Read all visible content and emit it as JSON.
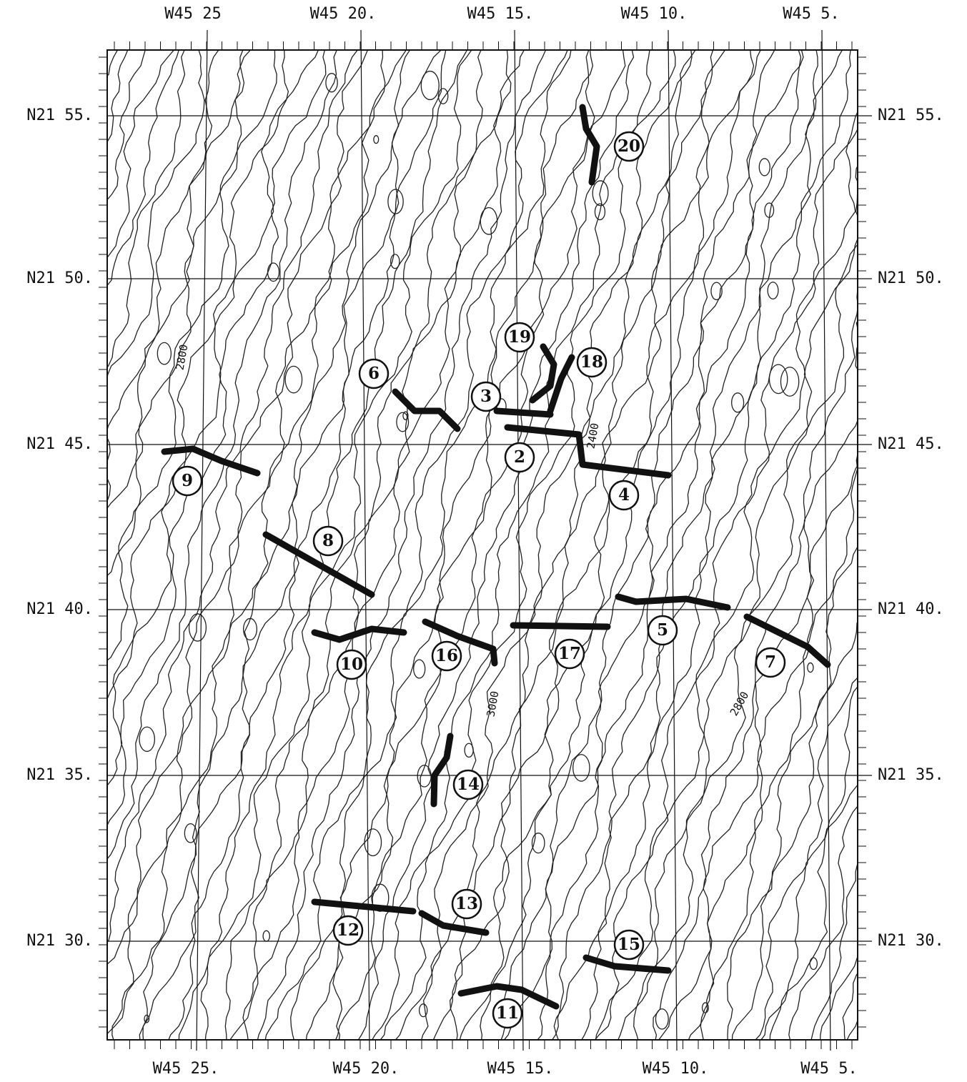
{
  "top_labels": [
    "W45 25",
    "W45 20.",
    "W45 15.",
    "W45 10.",
    "W45 5."
  ],
  "bottom_labels": [
    "W45 25.",
    "W45 20.",
    "W45 15.",
    "W45 10.",
    "W45 5."
  ],
  "left_labels": [
    "N21 55.",
    "N21 50.",
    "N21 45.",
    "N21 40.",
    "N21 35.",
    "N21 30."
  ],
  "right_labels": [
    "N21 55.",
    "N21 50.",
    "N21 45.",
    "N21 40.",
    "N21 35.",
    "N21 30."
  ],
  "markers": [
    "20",
    "19",
    "18",
    "6",
    "3",
    "2",
    "9",
    "4",
    "8",
    "5",
    "7",
    "10",
    "16",
    "17",
    "14",
    "13",
    "12",
    "15",
    "11"
  ],
  "contour_labels": [
    "2800",
    "2400",
    "3000",
    "2800"
  ]
}
